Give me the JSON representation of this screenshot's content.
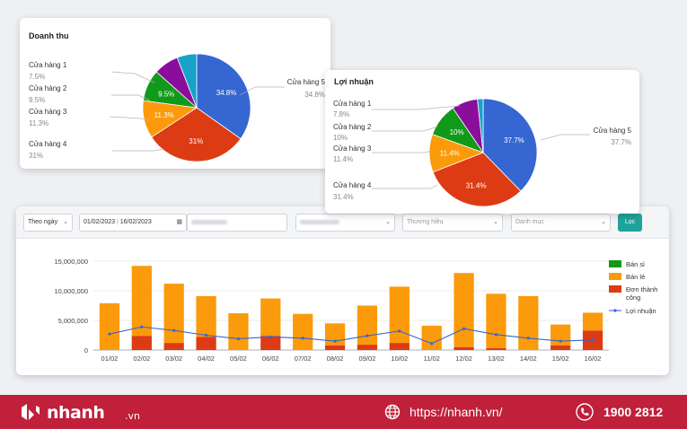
{
  "revenue_card": {
    "title": "Doanh thu",
    "labels": [
      {
        "name": "Cửa hàng 1",
        "pct": "7.5%"
      },
      {
        "name": "Cửa hàng 2",
        "pct": "9.5%"
      },
      {
        "name": "Cửa hàng 3",
        "pct": "11.3%"
      },
      {
        "name": "Cửa hàng 4",
        "pct": "31%"
      },
      {
        "name": "Cửa hàng 5",
        "pct": "34.8%"
      }
    ]
  },
  "profit_card": {
    "title": "Lợi nhuận",
    "labels": [
      {
        "name": "Cửa hàng 1",
        "pct": "7.8%"
      },
      {
        "name": "Cửa hàng 2",
        "pct": "10%"
      },
      {
        "name": "Cửa hàng 3",
        "pct": "11.4%"
      },
      {
        "name": "Cửa hàng 4",
        "pct": "31.4%"
      },
      {
        "name": "Cửa hàng 5",
        "pct": "37.7%"
      }
    ]
  },
  "filters": {
    "period": "Theo ngày",
    "date_from": "01/02/2023",
    "date_to": "16/02/2023",
    "brand_placeholder": "Thương hiệu",
    "category_placeholder": "Danh mục",
    "submit_label": "Lọc"
  },
  "footer": {
    "logo_text": "nhanh",
    "logo_suffix": ".vn",
    "website": "https://nhanh.vn/",
    "hotline": "1900 2812"
  },
  "colors": {
    "store1": "#17a2c8",
    "store2": "#8b0d9c",
    "store3": "#119a19",
    "store4": "#fb9a0a",
    "store5": "#dd3b14",
    "store6": "#3566d1",
    "wholesale": "#119a19",
    "retail": "#fb9a0a",
    "success": "#dd3b14",
    "profit_line": "#3566d1",
    "footer": "#c0203a"
  },
  "chart_data": [
    {
      "type": "pie",
      "title": "Doanh thu",
      "slices": [
        {
          "label": "Cửa hàng 5",
          "value": 34.8,
          "color": "#3566d1"
        },
        {
          "label": "Cửa hàng 4",
          "value": 31,
          "color": "#dd3b14"
        },
        {
          "label": "Cửa hàng 3",
          "value": 11.3,
          "color": "#fb9a0a"
        },
        {
          "label": "Cửa hàng 2",
          "value": 9.5,
          "color": "#119a19"
        },
        {
          "label": "Cửa hàng 1",
          "value": 7.5,
          "color": "#8b0d9c"
        },
        {
          "label": "",
          "value": 5.9,
          "color": "#17a2c8"
        }
      ],
      "data_labels": [
        "34.8%",
        "31%",
        "11.3%",
        "9.5%"
      ]
    },
    {
      "type": "pie",
      "title": "Lợi nhuận",
      "slices": [
        {
          "label": "Cửa hàng 5",
          "value": 37.7,
          "color": "#3566d1"
        },
        {
          "label": "Cửa hàng 4",
          "value": 31.4,
          "color": "#dd3b14"
        },
        {
          "label": "Cửa hàng 3",
          "value": 11.4,
          "color": "#fb9a0a"
        },
        {
          "label": "Cửa hàng 2",
          "value": 10,
          "color": "#119a19"
        },
        {
          "label": "Cửa hàng 1",
          "value": 7.8,
          "color": "#8b0d9c"
        },
        {
          "label": "",
          "value": 1.7,
          "color": "#17a2c8"
        }
      ],
      "data_labels": [
        "37.7%",
        "31.4%",
        "11.4%",
        "10%"
      ]
    },
    {
      "type": "bar",
      "stacked": true,
      "categories": [
        "01/02",
        "02/02",
        "03/02",
        "04/02",
        "05/02",
        "06/02",
        "07/02",
        "08/02",
        "09/02",
        "10/02",
        "11/02",
        "12/02",
        "13/02",
        "14/02",
        "15/02",
        "16/02"
      ],
      "series": [
        {
          "name": "Bán sỉ",
          "color": "#119a19",
          "values": [
            0,
            0,
            0,
            0,
            0,
            0,
            0,
            0,
            0,
            0,
            0,
            0,
            0,
            0,
            0,
            0
          ]
        },
        {
          "name": "Bán lẻ",
          "color": "#fb9a0a",
          "values": [
            7900000,
            11800000,
            10000000,
            6900000,
            6200000,
            6300000,
            6100000,
            3700000,
            6600000,
            9500000,
            4100000,
            12500000,
            9200000,
            9100000,
            3500000,
            3000000
          ]
        },
        {
          "name": "Đơn thành công",
          "color": "#dd3b14",
          "values": [
            0,
            2400000,
            1200000,
            2200000,
            0,
            2400000,
            0,
            800000,
            900000,
            1200000,
            0,
            500000,
            300000,
            0,
            800000,
            3300000
          ]
        }
      ],
      "line": {
        "name": "Lợi nhuận",
        "color": "#3566d1",
        "values": [
          2700000,
          3900000,
          3300000,
          2500000,
          1900000,
          2200000,
          2000000,
          1500000,
          2400000,
          3200000,
          1100000,
          3600000,
          2600000,
          2000000,
          1500000,
          1700000
        ]
      },
      "yticks": [
        "0",
        "5,000,000",
        "10,000,000",
        "15,000,000"
      ],
      "ylim": [
        0,
        15000000
      ],
      "legend_position": "right"
    }
  ]
}
